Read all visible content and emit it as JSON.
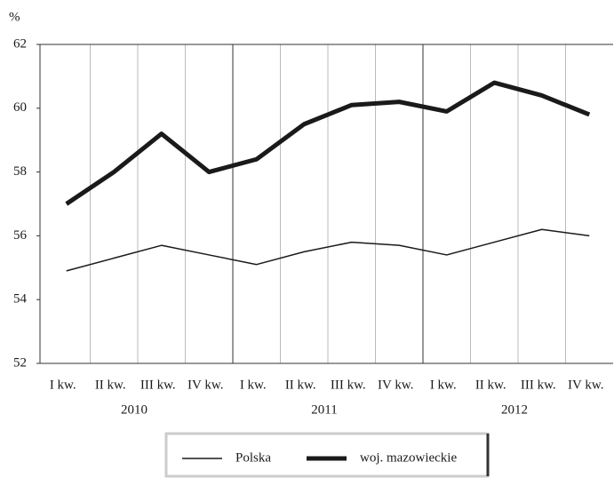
{
  "chart_data": {
    "type": "line",
    "y_label": "%",
    "categories": [
      "I kw.",
      "II kw.",
      "III kw.",
      "IV kw.",
      "I kw.",
      "II kw.",
      "III kw.",
      "IV kw.",
      "I kw.",
      "II kw.",
      "III kw.",
      "IV kw."
    ],
    "year_labels": [
      "2010",
      "2011",
      "2012"
    ],
    "series": [
      {
        "name": "Polska",
        "color": "#1a1a1a",
        "width": 1.5,
        "values": [
          54.9,
          55.3,
          55.7,
          55.4,
          55.1,
          55.5,
          55.8,
          55.7,
          55.4,
          55.8,
          56.2,
          56.0
        ]
      },
      {
        "name": "woj. mazowieckie",
        "color": "#1a1a1a",
        "width": 5,
        "values": [
          57.0,
          58.0,
          59.2,
          58.0,
          58.4,
          59.5,
          60.1,
          60.2,
          59.9,
          60.8,
          60.4,
          59.8
        ]
      }
    ],
    "ylim": [
      52,
      62
    ],
    "yticks": [
      52,
      54,
      56,
      58,
      60,
      62
    ],
    "grid": true,
    "legend": "bottom"
  }
}
